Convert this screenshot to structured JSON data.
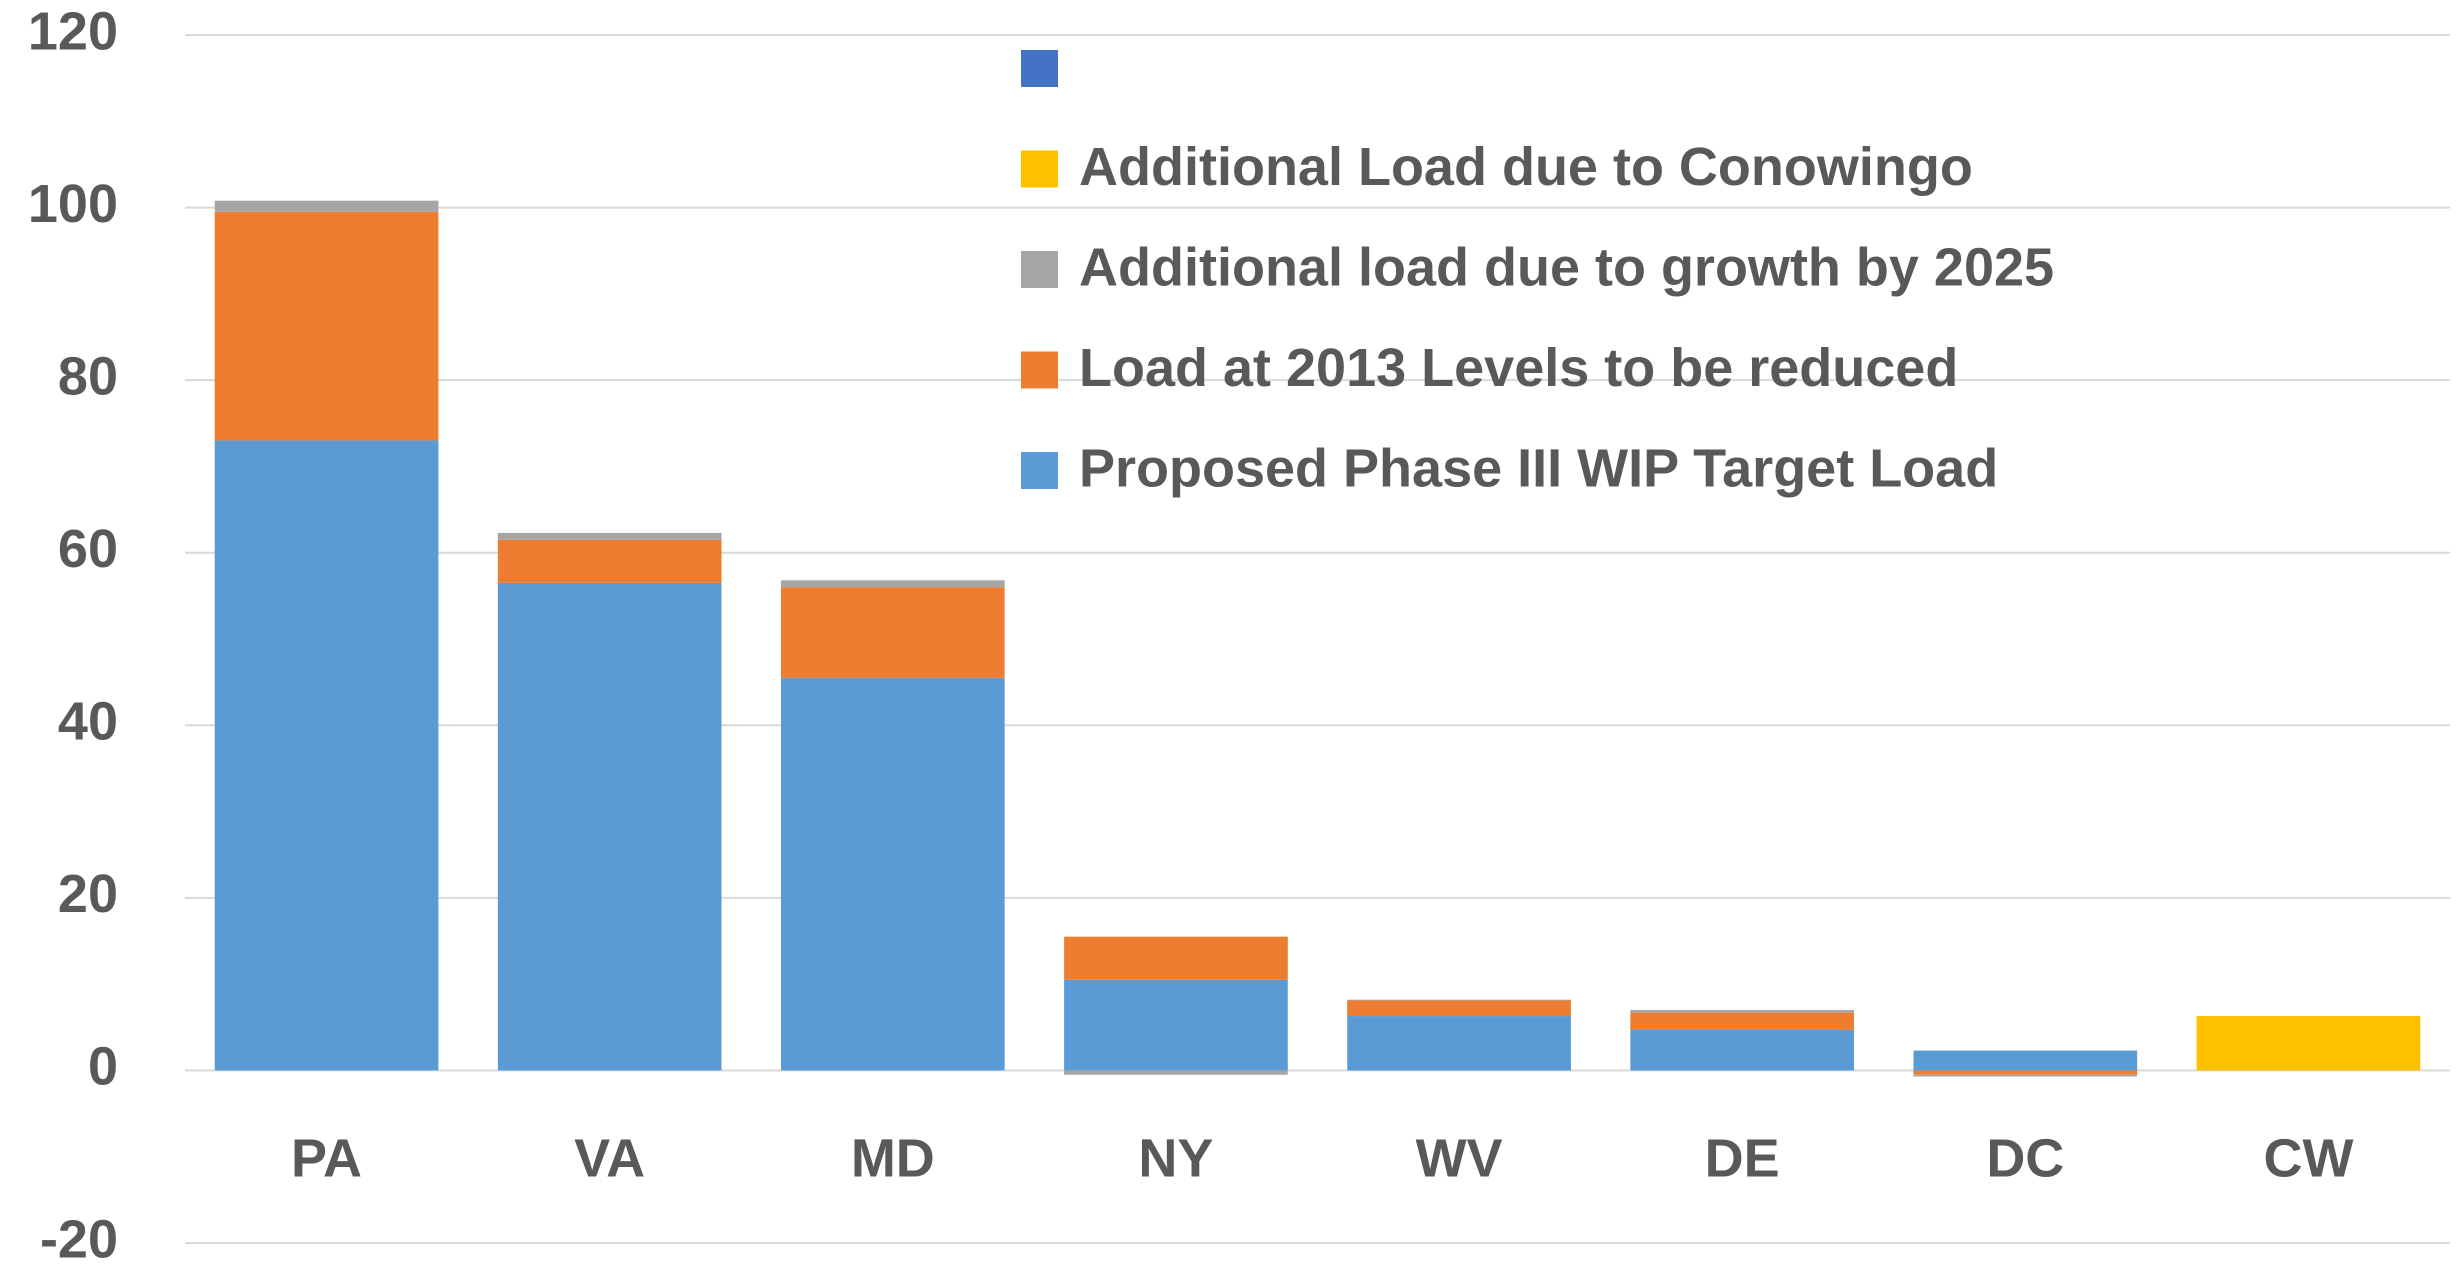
{
  "chart_data": {
    "type": "stacked_bar",
    "categories": [
      "PA",
      "VA",
      "MD",
      "NY",
      "WV",
      "DE",
      "DC",
      "CW"
    ],
    "series": [
      {
        "name": "Proposed Phase III WIP Target Load",
        "color": "#5b9bd5",
        "values": [
          73,
          56.5,
          45.5,
          10.5,
          6.3,
          4.7,
          2.3,
          0
        ]
      },
      {
        "name": "Load at 2013 Levels to be reduced",
        "color": "#ed7d31",
        "values": [
          26.5,
          5,
          10.5,
          5,
          1.8,
          2,
          -0.5,
          0
        ]
      },
      {
        "name": "Additional load due to growth by 2025",
        "color": "#a5a5a5",
        "values": [
          1.3,
          0.8,
          0.8,
          -0.5,
          0.1,
          0.3,
          -0.2,
          0
        ]
      },
      {
        "name": "Additional Load due to Conowingo",
        "color": "#ffc000",
        "values": [
          0,
          0,
          0,
          0,
          0,
          0,
          0,
          6.3
        ]
      },
      {
        "name": null,
        "color": "#4472c4",
        "values": [
          null,
          null,
          null,
          null,
          null,
          null,
          null,
          null
        ]
      }
    ],
    "ylim": [
      -20,
      120
    ],
    "yticks": [
      -20,
      0,
      20,
      40,
      60,
      80,
      100,
      120
    ],
    "grid": true,
    "legend": "top"
  }
}
